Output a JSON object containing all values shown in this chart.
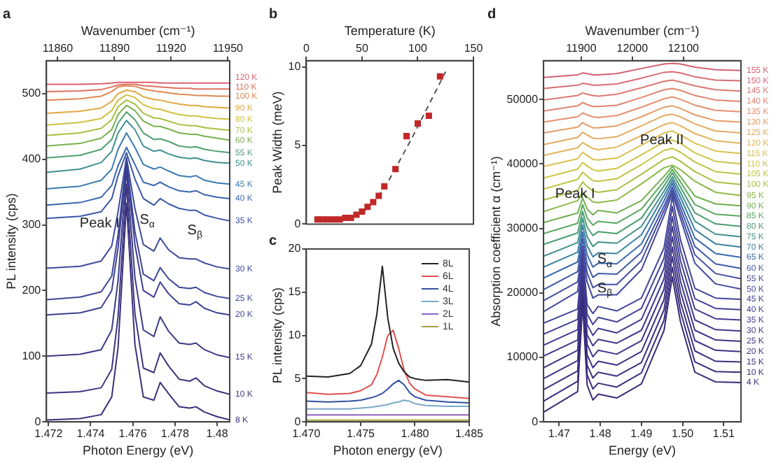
{
  "chart_data": [
    {
      "type": "line",
      "title": "a",
      "xlabel": "Photon Energy (eV)",
      "ylabel": "PL intensity (cps)",
      "x2label": "Wavenumber (cm⁻¹)",
      "x": [
        1.4719,
        1.4735,
        1.4745,
        1.475,
        1.4753,
        1.4757,
        1.4761,
        1.4765,
        1.477,
        1.4773,
        1.4777,
        1.4782,
        1.4787,
        1.479,
        1.4794,
        1.48,
        1.4806
      ],
      "xlim": [
        1.4719,
        1.4806
      ],
      "xticks": [
        1.472,
        1.474,
        1.476,
        1.478,
        1.48
      ],
      "x2lim": [
        11854,
        11951
      ],
      "x2ticks": [
        11860,
        11890,
        11920,
        11950
      ],
      "ylim": [
        0,
        550
      ],
      "yticks": [
        0,
        100,
        200,
        300,
        400,
        500
      ],
      "series": [
        {
          "name": "8 K",
          "color": "#3a2f7a",
          "values": [
            3,
            5,
            11,
            38,
            113,
            333,
            118,
            38,
            33,
            60,
            43,
            23,
            21,
            23,
            15,
            8,
            3
          ]
        },
        {
          "name": "10 K",
          "color": "#3a3580",
          "values": [
            44,
            46,
            52,
            80,
            160,
            362,
            165,
            82,
            75,
            105,
            85,
            65,
            62,
            67,
            55,
            47,
            42
          ]
        },
        {
          "name": "15 K",
          "color": "#3b3a88",
          "values": [
            100,
            103,
            110,
            140,
            215,
            383,
            220,
            140,
            130,
            160,
            138,
            120,
            118,
            120,
            110,
            102,
            98
          ]
        },
        {
          "name": "20 K",
          "color": "#3c3f90",
          "values": [
            163,
            166,
            174,
            200,
            265,
            393,
            270,
            200,
            190,
            213,
            195,
            180,
            178,
            183,
            173,
            166,
            163
          ]
        },
        {
          "name": "25 K",
          "color": "#3d4496",
          "values": [
            186,
            190,
            198,
            222,
            285,
            398,
            290,
            225,
            215,
            235,
            218,
            205,
            203,
            205,
            197,
            191,
            188
          ]
        },
        {
          "name": "30 K",
          "color": "#3d4a9c",
          "values": [
            234,
            237,
            245,
            268,
            320,
            403,
            325,
            270,
            260,
            280,
            262,
            250,
            248,
            248,
            242,
            236,
            233
          ]
        },
        {
          "name": "35 K",
          "color": "#3a55a8",
          "values": [
            310,
            313,
            320,
            340,
            375,
            410,
            370,
            340,
            330,
            340,
            332,
            325,
            322,
            322,
            315,
            310,
            306
          ]
        },
        {
          "name": "40 K",
          "color": "#3a66b0",
          "values": [
            330,
            334,
            342,
            360,
            390,
            418,
            392,
            365,
            360,
            365,
            358,
            352,
            350,
            352,
            346,
            342,
            340
          ]
        },
        {
          "name": "45 K",
          "color": "#3a7ab0",
          "values": [
            355,
            359,
            368,
            385,
            415,
            440,
            418,
            392,
            385,
            388,
            382,
            375,
            373,
            375,
            368,
            364,
            362
          ]
        },
        {
          "name": "50 K",
          "color": "#3f8f90",
          "values": [
            380,
            385,
            395,
            412,
            440,
            459,
            445,
            420,
            412,
            414,
            408,
            403,
            401,
            402,
            398,
            395,
            394
          ]
        },
        {
          "name": "55 K",
          "color": "#4fa070",
          "values": [
            402,
            406,
            415,
            430,
            455,
            472,
            460,
            440,
            430,
            431,
            427,
            420,
            418,
            419,
            415,
            412,
            410
          ]
        },
        {
          "name": "60 K",
          "color": "#7ab050",
          "values": [
            420,
            424,
            432,
            445,
            468,
            482,
            474,
            458,
            450,
            450,
            446,
            440,
            438,
            438,
            435,
            432,
            429
          ]
        },
        {
          "name": "70 K",
          "color": "#a8c040",
          "values": [
            436,
            440,
            447,
            460,
            480,
            490,
            484,
            470,
            463,
            462,
            458,
            453,
            451,
            451,
            448,
            446,
            444
          ]
        },
        {
          "name": "80 K",
          "color": "#d0c040",
          "values": [
            452,
            456,
            462,
            474,
            490,
            498,
            494,
            483,
            477,
            476,
            472,
            468,
            466,
            466,
            464,
            462,
            461
          ]
        },
        {
          "name": "90 K",
          "color": "#e0a840",
          "values": [
            470,
            473,
            478,
            488,
            500,
            505,
            503,
            495,
            491,
            490,
            487,
            484,
            482,
            482,
            480,
            479,
            478
          ]
        },
        {
          "name": "100 K",
          "color": "#e08850",
          "values": [
            490,
            492,
            496,
            503,
            510,
            512,
            511,
            507,
            504,
            503,
            501,
            499,
            498,
            497,
            497,
            496,
            496
          ]
        },
        {
          "name": "110 K",
          "color": "#e07060",
          "values": [
            503,
            504,
            506,
            510,
            513,
            514,
            514,
            512,
            511,
            510,
            509,
            508,
            508,
            507,
            507,
            507,
            507
          ]
        },
        {
          "name": "120 K",
          "color": "#e06070",
          "values": [
            514,
            514,
            515,
            516,
            517,
            517,
            517,
            517,
            517,
            516,
            516,
            516,
            516,
            516,
            516,
            516,
            516
          ]
        }
      ],
      "annotations": [
        "Peak I",
        "S$_{α}$",
        "S$_{β}$"
      ]
    },
    {
      "type": "scatter",
      "title": "b",
      "xlabel": "Temperature (K)",
      "ylabel": "Peak Width (meV)",
      "xlim": [
        0,
        150
      ],
      "xticks": [
        0,
        50,
        100,
        150
      ],
      "ylim": [
        0,
        10.4
      ],
      "yticks": [
        0,
        5,
        10
      ],
      "series": [
        {
          "type": "scatter",
          "marker": "square",
          "color": "#c0282a",
          "x": [
            10,
            15,
            20,
            25,
            30,
            35,
            40,
            45,
            50,
            55,
            60,
            65,
            70,
            80,
            90,
            100,
            110,
            120
          ],
          "values": [
            0.3,
            0.3,
            0.3,
            0.3,
            0.3,
            0.4,
            0.4,
            0.6,
            0.8,
            1.1,
            1.4,
            1.8,
            2.4,
            3.5,
            5.6,
            6.4,
            6.9,
            9.4
          ]
        },
        {
          "type": "line",
          "line_style": "dashed",
          "color": "#555555",
          "x": [
            45,
            55,
            65,
            75,
            85,
            95,
            105,
            115,
            125
          ],
          "values": [
            0.5,
            1.0,
            1.8,
            2.9,
            4.2,
            5.5,
            6.9,
            8.3,
            9.7
          ]
        }
      ]
    },
    {
      "type": "line",
      "title": "c",
      "xlabel": "Photon energy (eV)",
      "ylabel": "PL intensity (cps)",
      "legend": "top right",
      "x": [
        1.47,
        1.472,
        1.474,
        1.475,
        1.476,
        1.4765,
        1.477,
        1.4775,
        1.478,
        1.4785,
        1.479,
        1.4795,
        1.48,
        1.481,
        1.483,
        1.485
      ],
      "xlim": [
        1.47,
        1.485
      ],
      "xticks": [
        {
          "value": 1.47,
          "label": "1.470"
        },
        1.475,
        {
          "value": 1.48,
          "label": "1.480"
        },
        1.485
      ],
      "ylim": [
        0,
        20
      ],
      "yticks": [
        0,
        5,
        10,
        15,
        20
      ],
      "series": [
        {
          "name": "8L",
          "color": "#222222",
          "values": [
            5.3,
            5.2,
            5.6,
            6.5,
            9,
            12.5,
            18,
            12,
            8.5,
            6.8,
            5.8,
            5.2,
            5.0,
            4.8,
            4.9,
            4.6
          ]
        },
        {
          "name": "6L",
          "color": "#e05050",
          "values": [
            3.4,
            3.2,
            3.3,
            3.6,
            4.3,
            5.5,
            7.5,
            10,
            10.6,
            8.5,
            6,
            4.5,
            3.8,
            3.1,
            2.9,
            2.7
          ]
        },
        {
          "name": "4L",
          "color": "#3050a0",
          "values": [
            2.4,
            2.3,
            2.4,
            2.5,
            2.8,
            3.0,
            3.3,
            3.8,
            4.4,
            4.8,
            4.3,
            3.4,
            2.9,
            2.5,
            2.3,
            2.2
          ]
        },
        {
          "name": "3L",
          "color": "#7aa8c8",
          "values": [
            1.5,
            1.5,
            1.5,
            1.6,
            1.7,
            1.8,
            1.9,
            2.0,
            2.2,
            2.3,
            2.5,
            2.4,
            2.1,
            1.9,
            1.8,
            1.8
          ]
        },
        {
          "name": "2L",
          "color": "#9060c0",
          "values": [
            0.8,
            0.8,
            0.8,
            0.8,
            0.8,
            0.8,
            0.8,
            0.8,
            0.8,
            0.8,
            0.8,
            0.8,
            0.8,
            0.8,
            0.8,
            0.8
          ]
        },
        {
          "name": "1L",
          "color": "#a0a040",
          "values": [
            0.2,
            0.2,
            0.2,
            0.2,
            0.2,
            0.2,
            0.2,
            0.2,
            0.2,
            0.2,
            0.2,
            0.2,
            0.2,
            0.2,
            0.2,
            0.2
          ]
        }
      ]
    },
    {
      "type": "line",
      "title": "d",
      "xlabel": "Energy (eV)",
      "ylabel": "Absorption coefficient α (cm⁻¹)",
      "x2label": "Wavenumber (cm⁻¹)",
      "x": [
        1.4662,
        1.4745,
        1.4757,
        1.4768,
        1.4782,
        1.4795,
        1.484,
        1.49,
        1.4955,
        1.4975,
        1.4995,
        1.503,
        1.508,
        1.5142
      ],
      "xlim": [
        1.4662,
        1.5142
      ],
      "xticks": [
        1.47,
        1.48,
        1.49,
        {
          "value": 1.5,
          "label": "1.50"
        },
        1.51
      ],
      "x2lim": [
        11826,
        12213
      ],
      "x2ticks": [
        11900,
        12000,
        12100
      ],
      "ylim": [
        0,
        56000
      ],
      "yticks": [
        0,
        10000,
        20000,
        30000,
        40000,
        50000
      ],
      "series": [
        {
          "name": "4 K",
          "color": "#3a2a78",
          "values": [
            1500,
            4700,
            18400,
            5700,
            3400,
            4300,
            3700,
            5900,
            14200,
            22500,
            15500,
            7700,
            6200,
            6100
          ]
        },
        {
          "name": "10 K",
          "color": "#3b2d7c",
          "values": [
            3200,
            6300,
            19400,
            7300,
            5100,
            6000,
            5400,
            7600,
            15800,
            24000,
            17100,
            9300,
            7800,
            7700
          ]
        },
        {
          "name": "15 K",
          "color": "#3c3080",
          "values": [
            5000,
            7900,
            20400,
            8800,
            6800,
            7700,
            7100,
            9200,
            17400,
            25600,
            18600,
            11000,
            9400,
            9300
          ]
        },
        {
          "name": "20 K",
          "color": "#3d3384",
          "values": [
            6700,
            9500,
            21400,
            10400,
            8400,
            9400,
            8800,
            10900,
            19000,
            27100,
            20200,
            12600,
            11100,
            10900
          ]
        },
        {
          "name": "25 K",
          "color": "#3e3688",
          "values": [
            8400,
            11100,
            22400,
            12000,
            10100,
            11100,
            10500,
            12600,
            20600,
            28700,
            21800,
            14200,
            12700,
            12500
          ]
        },
        {
          "name": "30 K",
          "color": "#3f398c",
          "values": [
            10200,
            12700,
            23400,
            13500,
            11800,
            12800,
            12200,
            14200,
            22200,
            30300,
            23400,
            15800,
            14300,
            14100
          ]
        },
        {
          "name": "35 K",
          "color": "#403c90",
          "values": [
            11900,
            14300,
            24400,
            15100,
            13400,
            14500,
            13800,
            15900,
            23800,
            31800,
            25000,
            17500,
            16000,
            15800
          ]
        },
        {
          "name": "40 K",
          "color": "#414094",
          "values": [
            13600,
            15900,
            25500,
            16700,
            15100,
            16200,
            15500,
            17600,
            25400,
            33400,
            26600,
            19100,
            17600,
            17400
          ]
        },
        {
          "name": "45 K",
          "color": "#424498",
          "values": [
            15300,
            17500,
            26500,
            18200,
            16800,
            17900,
            17200,
            19200,
            27000,
            34900,
            28200,
            20700,
            19200,
            19000
          ]
        },
        {
          "name": "50 K",
          "color": "#43489c",
          "values": [
            17100,
            20200,
            26300,
            21700,
            19200,
            19700,
            19700,
            23600,
            32000,
            35400,
            31500,
            24600,
            21400,
            20600
          ]
        },
        {
          "name": "55 K",
          "color": "#444ca0",
          "values": [
            18800,
            21700,
            27300,
            23100,
            20800,
            21300,
            21300,
            25000,
            32800,
            35900,
            32300,
            25900,
            23000,
            22200
          ]
        },
        {
          "name": "60 K",
          "color": "#4058a8",
          "values": [
            20500,
            23300,
            28400,
            24500,
            22400,
            23000,
            22900,
            26300,
            33500,
            36400,
            33100,
            27200,
            24500,
            23800
          ]
        },
        {
          "name": "65 K",
          "color": "#3a68b0",
          "values": [
            22300,
            24800,
            29400,
            25900,
            24000,
            24600,
            24500,
            27600,
            34300,
            37000,
            33900,
            28500,
            26100,
            25500
          ]
        },
        {
          "name": "70 K",
          "color": "#3a80a0",
          "values": [
            24000,
            26300,
            30500,
            27300,
            25600,
            26200,
            26100,
            29000,
            35100,
            37500,
            34800,
            29800,
            27600,
            27100
          ]
        },
        {
          "name": "75 K",
          "color": "#3e9088",
          "values": [
            25700,
            27800,
            31600,
            28700,
            27200,
            27900,
            27700,
            30300,
            35800,
            38000,
            35600,
            31100,
            29100,
            28700
          ]
        },
        {
          "name": "80 K",
          "color": "#4a9c70",
          "values": [
            27500,
            29300,
            32600,
            30200,
            28900,
            29500,
            29200,
            31600,
            36600,
            38600,
            36400,
            32400,
            30700,
            30300
          ]
        },
        {
          "name": "85 K",
          "color": "#5aa860",
          "values": [
            29200,
            30800,
            33700,
            31600,
            30500,
            31100,
            30800,
            33000,
            37300,
            39100,
            37200,
            33700,
            32200,
            31900
          ]
        },
        {
          "name": "90 K",
          "color": "#70b050",
          "values": [
            30900,
            32400,
            34700,
            33000,
            32100,
            32800,
            32400,
            34300,
            38100,
            39600,
            38000,
            35000,
            33800,
            33500
          ]
        },
        {
          "name": "95 K",
          "color": "#8cb848",
          "values": [
            32600,
            34300,
            35600,
            34900,
            34100,
            34000,
            34400,
            36900,
            39400,
            39800,
            39100,
            37300,
            35600,
            35100
          ]
        },
        {
          "name": "100 K",
          "color": "#a8c040",
          "values": [
            34400,
            35900,
            37200,
            36500,
            35800,
            35600,
            36000,
            38400,
            40700,
            41100,
            40400,
            38800,
            37200,
            36800
          ]
        },
        {
          "name": "105 K",
          "color": "#c0c440",
          "values": [
            36100,
            37600,
            38700,
            38100,
            37400,
            37300,
            37700,
            39900,
            42100,
            42400,
            41800,
            40300,
            38800,
            38400
          ]
        },
        {
          "name": "110 K",
          "color": "#d0c448",
          "values": [
            37800,
            39200,
            40200,
            39700,
            39100,
            38900,
            39300,
            41400,
            43400,
            43700,
            43200,
            41700,
            40400,
            40000
          ]
        },
        {
          "name": "115 K",
          "color": "#dcc050",
          "values": [
            39600,
            40800,
            41800,
            41300,
            40700,
            40600,
            40900,
            42900,
            44800,
            45100,
            44500,
            43200,
            42000,
            41600
          ]
        },
        {
          "name": "120 K",
          "color": "#e0b458",
          "values": [
            41300,
            42500,
            43300,
            42900,
            42400,
            42200,
            42600,
            44400,
            46100,
            46400,
            45900,
            44700,
            43600,
            43200
          ]
        },
        {
          "name": "125 K",
          "color": "#e4a860",
          "values": [
            43000,
            44100,
            44900,
            44500,
            44000,
            43900,
            44200,
            45900,
            47500,
            47700,
            47300,
            46200,
            45100,
            44800
          ]
        },
        {
          "name": "130 K",
          "color": "#e49c68",
          "values": [
            44800,
            45700,
            46400,
            46000,
            45600,
            45600,
            45900,
            47300,
            48800,
            49000,
            48600,
            47600,
            46700,
            46500
          ]
        },
        {
          "name": "135 K",
          "color": "#e49070",
          "values": [
            46500,
            47300,
            47900,
            47600,
            47300,
            47200,
            47500,
            48800,
            50100,
            50400,
            50000,
            49100,
            48300,
            48100
          ]
        },
        {
          "name": "140 K",
          "color": "#e08470",
          "values": [
            48200,
            49000,
            49500,
            49200,
            48900,
            48900,
            49100,
            50300,
            51500,
            51700,
            51400,
            50600,
            49900,
            49700
          ]
        },
        {
          "name": "145 K",
          "color": "#dc7874",
          "values": [
            49900,
            50600,
            51000,
            50800,
            50600,
            50500,
            50800,
            51800,
            52800,
            53000,
            52700,
            52100,
            51500,
            51300
          ]
        },
        {
          "name": "150 K",
          "color": "#d86c74",
          "values": [
            51700,
            52200,
            52500,
            52400,
            52200,
            52200,
            52400,
            53300,
            54200,
            54300,
            54100,
            53500,
            53000,
            52900
          ]
        },
        {
          "name": "155 K",
          "color": "#d46074",
          "values": [
            53400,
            53800,
            54100,
            54000,
            53800,
            53800,
            54000,
            54800,
            55500,
            55600,
            55500,
            55000,
            54600,
            54500
          ]
        }
      ],
      "annotations": [
        "Peak I",
        "Peak II",
        "S$_{α}$",
        "S$_{β}$"
      ]
    }
  ]
}
